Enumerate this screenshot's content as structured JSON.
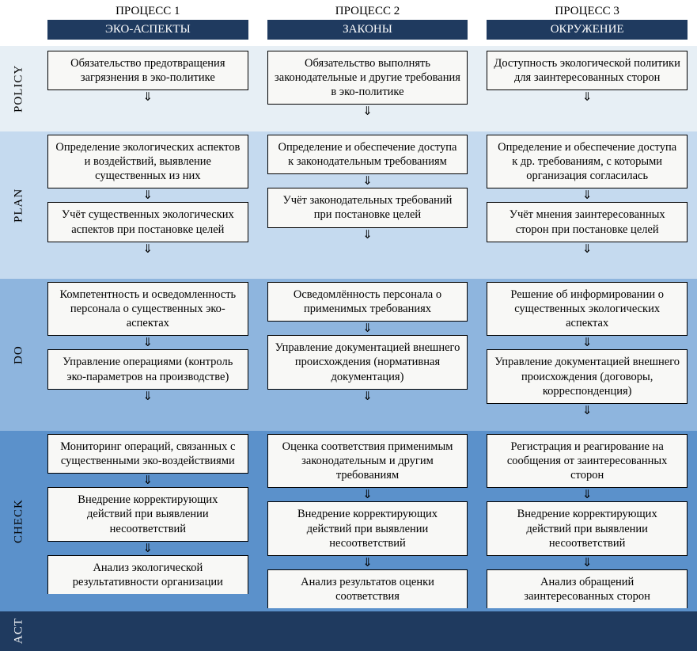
{
  "colors": {
    "header_bg": "#1f3a5f",
    "box_bg": "#f8f8f6",
    "box_border": "#000000",
    "phase_policy": "#e7eff5",
    "phase_plan": "#c5daef",
    "phase_do": "#8eb5de",
    "phase_check": "#5b91cb",
    "phase_act": "#1f3a5f",
    "text_dark": "#000000",
    "text_light": "#ffffff"
  },
  "arrow_glyph": "⇓",
  "phases": {
    "policy": "POLICY",
    "plan": "PLAN",
    "do": "DO",
    "check": "CHECK",
    "act": "ACT"
  },
  "columns": [
    {
      "proc_label": "ПРОЦЕСС 1",
      "header": "ЭКО-АСПЕКТЫ",
      "policy": [
        "Обязательство предотвращения загрязнения в эко-политике"
      ],
      "plan": [
        "Определение экологических аспектов и воздействий, выявление существенных из них",
        "Учёт существенных экологических аспектов при постановке целей"
      ],
      "do": [
        "Компетентность и осведомленность персонала о существенных эко-аспектах",
        "Управление операциями (контроль эко-параметров на производстве)"
      ],
      "check": [
        "Мониторинг операций, связанных с существенными эко-воздействиями",
        "Внедрение корректирующих действий при выявлении несоответствий"
      ],
      "act": [
        "Анализ экологической результативности организации"
      ]
    },
    {
      "proc_label": "ПРОЦЕСС 2",
      "header": "ЗАКОНЫ",
      "policy": [
        "Обязательство выполнять законодательные и другие требования в эко-политике"
      ],
      "plan": [
        "Определение и обеспечение доступа к законодательным требованиям",
        "Учёт законодательных требований при постановке целей"
      ],
      "do": [
        "Осведомлённость персонала о применимых требованиях",
        "Управление документацией внешнего происхождения (нормативная документация)"
      ],
      "check": [
        "Оценка соответствия применимым законодательным и другим требованиям",
        "Внедрение корректирующих действий при выявлении несоответствий"
      ],
      "act": [
        "Анализ результатов оценки соответствия"
      ]
    },
    {
      "proc_label": "ПРОЦЕСС 3",
      "header": "ОКРУЖЕНИЕ",
      "policy": [
        "Доступность экологической политики для заинтересованных сторон"
      ],
      "plan": [
        "Определение и обеспечение доступа к др. требованиям, с которыми организация согласилась",
        "Учёт мнения заинтересованных сторон при постановке целей"
      ],
      "do": [
        "Решение об информировании о существенных экологических аспектах",
        "Управление документацией внешнего происхождения (договоры, корреспонденция)"
      ],
      "check": [
        "Регистрация и реагирование на сообщения от заинтересованных сторон",
        "Внедрение корректирующих действий при выявлении несоответствий"
      ],
      "act": [
        "Анализ обращений заинтересованных сторон"
      ]
    }
  ]
}
